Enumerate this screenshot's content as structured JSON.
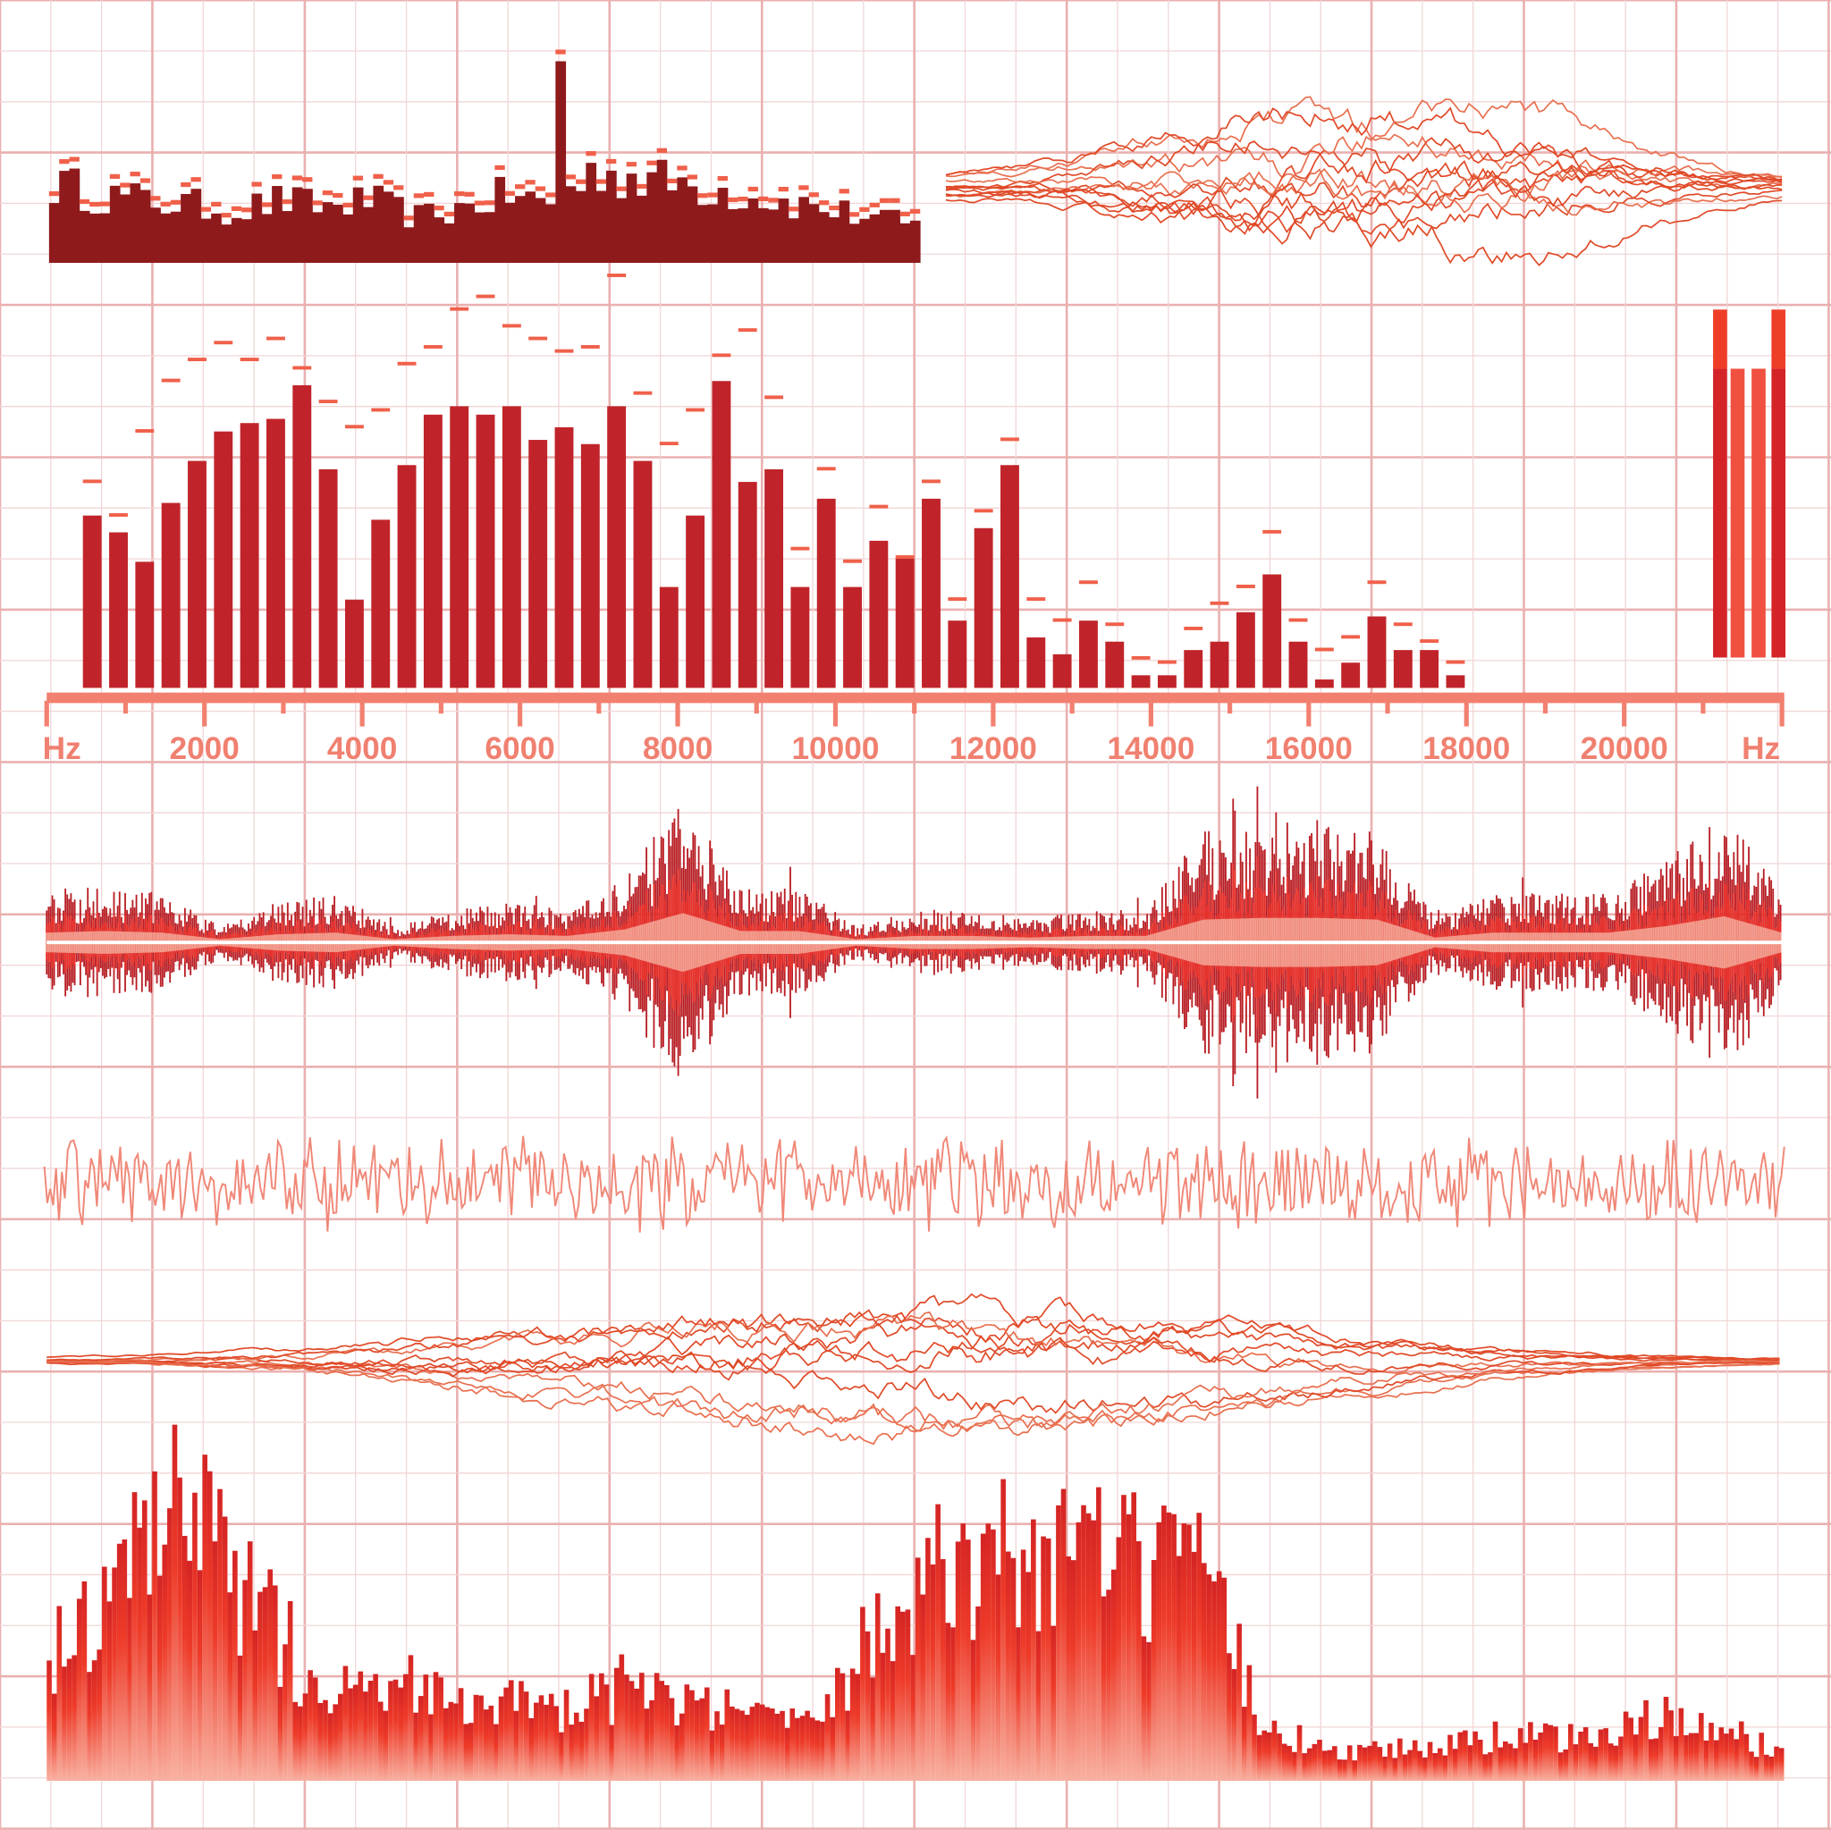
{
  "colors": {
    "grid_major": "#eab0b0",
    "grid_minor": "#f1d6d6",
    "dark_red": "#8e1a1c",
    "bar_red": "#c0242a",
    "peak_marker": "#f0604a",
    "axis": "#f28070",
    "wave_dark": "#b81e24",
    "wave_mid": "#e8302a",
    "wave_light": "#f4a090",
    "line_orange": "#e04a28",
    "noise_line": "#f08878",
    "meter_dark": "#d42428",
    "meter_light": "#f05040",
    "meter_peak": "#ef3e28"
  },
  "chart_data": [
    {
      "type": "bar",
      "role": "spectrum-histogram",
      "ylim": [
        0,
        100
      ],
      "envelope": [
        38,
        33,
        30,
        28,
        25,
        30,
        27,
        30,
        22,
        26,
        33,
        28,
        45,
        40,
        38,
        34,
        30,
        26,
        22,
        18
      ],
      "spike_level": 100
    },
    {
      "type": "line",
      "role": "overlapping-waveforms-top",
      "line_count": 12,
      "envelope": [
        0.15,
        0.2,
        0.35,
        0.6,
        0.85,
        1,
        1,
        0.95,
        0.9,
        0.7,
        0.45,
        0.25,
        0.15
      ]
    },
    {
      "type": "bar",
      "role": "frequency-spectrum",
      "xlabel": "Hz",
      "xlabel_right": "Hz",
      "xlim": [
        0,
        22000
      ],
      "ylim": [
        0,
        100
      ],
      "x_tick_labels": [
        "2000",
        "4000",
        "6000",
        "8000",
        "10000",
        "12000",
        "14000",
        "16000",
        "18000",
        "20000"
      ],
      "x_ticks_major": [
        2000,
        4000,
        6000,
        8000,
        10000,
        12000,
        14000,
        16000,
        18000,
        20000
      ],
      "values": [
        41,
        37,
        30,
        44,
        54,
        61,
        63,
        64,
        72,
        52,
        21,
        40,
        53,
        65,
        67,
        65,
        67,
        59,
        62,
        58,
        67,
        54,
        24,
        41,
        73,
        49,
        52,
        24,
        45,
        24,
        35,
        31,
        45,
        16,
        38,
        53,
        12,
        8,
        16,
        11,
        3,
        3,
        9,
        11,
        18,
        27,
        11,
        2,
        6,
        17,
        9,
        9,
        3
      ],
      "peaks": [
        49,
        41,
        61,
        73,
        78,
        82,
        78,
        83,
        76,
        68,
        62,
        66,
        77,
        81,
        90,
        93,
        86,
        83,
        80,
        81,
        98,
        70,
        58,
        66,
        79,
        85,
        69,
        33,
        52,
        30,
        43,
        31,
        49,
        21,
        42,
        59,
        21,
        16,
        25,
        15,
        7,
        6,
        14,
        20,
        24,
        37,
        16,
        9,
        12,
        25,
        15,
        11,
        6
      ]
    },
    {
      "type": "bar",
      "role": "level-meters",
      "ylim": [
        0,
        100
      ],
      "values": [
        100,
        83,
        83,
        100
      ],
      "peak_hold_from": 83
    },
    {
      "type": "area",
      "role": "stereo-waveform",
      "envelope": [
        0.3,
        0.35,
        0.3,
        0.1,
        0.25,
        0.3,
        0.1,
        0.2,
        0.25,
        0.2,
        0.4,
        0.9,
        0.35,
        0.35,
        0.1,
        0.2,
        0.2,
        0.15,
        0.2,
        0.2,
        0.7,
        0.75,
        0.75,
        0.7,
        0.15,
        0.3,
        0.3,
        0.3,
        0.5,
        0.8,
        0.3
      ]
    },
    {
      "type": "line",
      "role": "noise-signal",
      "amplitude": 0.5
    },
    {
      "type": "line",
      "role": "overlapping-waveforms-middle",
      "line_count": 10,
      "envelope": [
        0.05,
        0.1,
        0.2,
        0.4,
        0.6,
        0.8,
        0.95,
        1,
        0.95,
        0.8,
        0.55,
        0.35,
        0.2,
        0.1,
        0.05
      ]
    },
    {
      "type": "bar",
      "role": "spectrum-gradient",
      "ylim": [
        0,
        100
      ],
      "envelope": [
        40,
        55,
        85,
        60,
        35,
        30,
        30,
        25,
        20,
        30,
        22,
        20,
        15,
        60,
        65,
        70,
        70,
        65,
        60,
        15,
        10,
        10,
        12,
        15,
        12,
        20,
        15,
        10
      ]
    }
  ]
}
